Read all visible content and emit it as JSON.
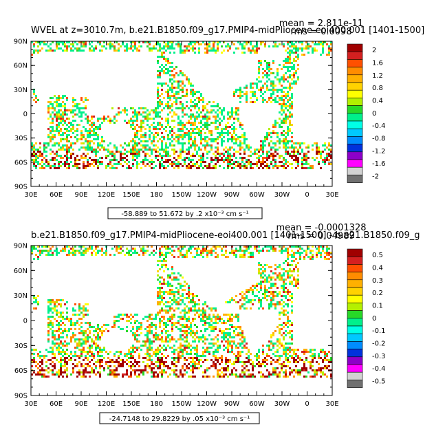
{
  "palette": [
    "#a00000",
    "#d42020",
    "#ff5000",
    "#ff8c00",
    "#ffb000",
    "#ffd200",
    "#ffff00",
    "#b4f000",
    "#28d828",
    "#00f08c",
    "#00ffe6",
    "#00c8ff",
    "#008cff",
    "#0032dc",
    "#8c00c8",
    "#ff00ff",
    "#d2d2d2",
    "#707070"
  ],
  "panels": [
    {
      "title": "WVEL at z=3010.7m, b.e21.B1850.f09_g17.PMIP4-midPliocene-eoi400.001 [1401-1500]",
      "mean_text": "mean = 2.811e-11",
      "rms_text": "rms = 0.0098",
      "lat_labels": [
        "90N",
        "60N",
        "30N",
        "0",
        "30S",
        "60S",
        "90S"
      ],
      "lon_labels": [
        "30E",
        "60E",
        "90E",
        "120E",
        "150E",
        "180",
        "150W",
        "120W",
        "90W",
        "60W",
        "30W",
        "0",
        "30E"
      ],
      "colorbar_labels": [
        "2",
        "1.6",
        "1.2",
        "0.8",
        "0.4",
        "0",
        "-0.4",
        "-0.8",
        "-1.2",
        "-1.6",
        "-2"
      ],
      "range_text": "-58.889 to 51.672 by .2 x10⁻³ cm s⁻¹",
      "variability": 0.12
    },
    {
      "title": "b.e21.B1850.f09_g17.PMIP4-midPliocene-eoi400.001 [1401-1500] - b.e21.B1850.f09_g",
      "mean_text": "mean = -0.0001328",
      "rms_text": "rms = 0.04989",
      "lat_labels": [
        "90N",
        "60N",
        "30N",
        "0",
        "30S",
        "60S",
        "90S"
      ],
      "lon_labels": [
        "30E",
        "60E",
        "90E",
        "120E",
        "150E",
        "180",
        "150W",
        "120W",
        "90W",
        "60W",
        "30W",
        "0",
        "30E"
      ],
      "colorbar_labels": [
        "0.5",
        "0.4",
        "0.3",
        "0.2",
        "0.1",
        "0",
        "-0.1",
        "-0.2",
        "-0.3",
        "-0.4",
        "-0.5"
      ],
      "range_text": "-24.7148 to 29.8229 by .05 x10⁻³ cm s⁻¹",
      "variability": 0.22
    }
  ]
}
